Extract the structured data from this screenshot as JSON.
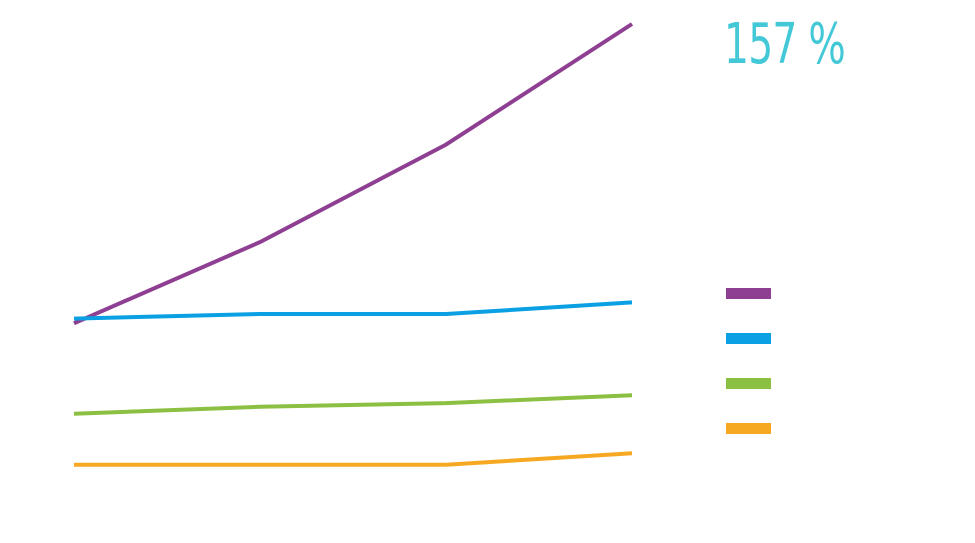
{
  "headline": {
    "value": "157 %",
    "color": "#43c8d7"
  },
  "chart_data": {
    "type": "line",
    "title": "",
    "xlabel": "",
    "ylabel": "",
    "x": [
      1,
      2,
      3,
      4
    ],
    "ylim": [
      0,
      100
    ],
    "grid": false,
    "legend_position": "right",
    "series": [
      {
        "color": "#8e3f92",
        "values": [
          35.5,
          53,
          74,
          100
        ]
      },
      {
        "color": "#0aa0e3",
        "values": [
          36.5,
          37.5,
          37.5,
          40
        ]
      },
      {
        "color": "#8bc043",
        "values": [
          16,
          17.5,
          18.3,
          20
        ]
      },
      {
        "color": "#f7a823",
        "values": [
          5,
          5,
          5,
          7.5
        ]
      }
    ]
  }
}
